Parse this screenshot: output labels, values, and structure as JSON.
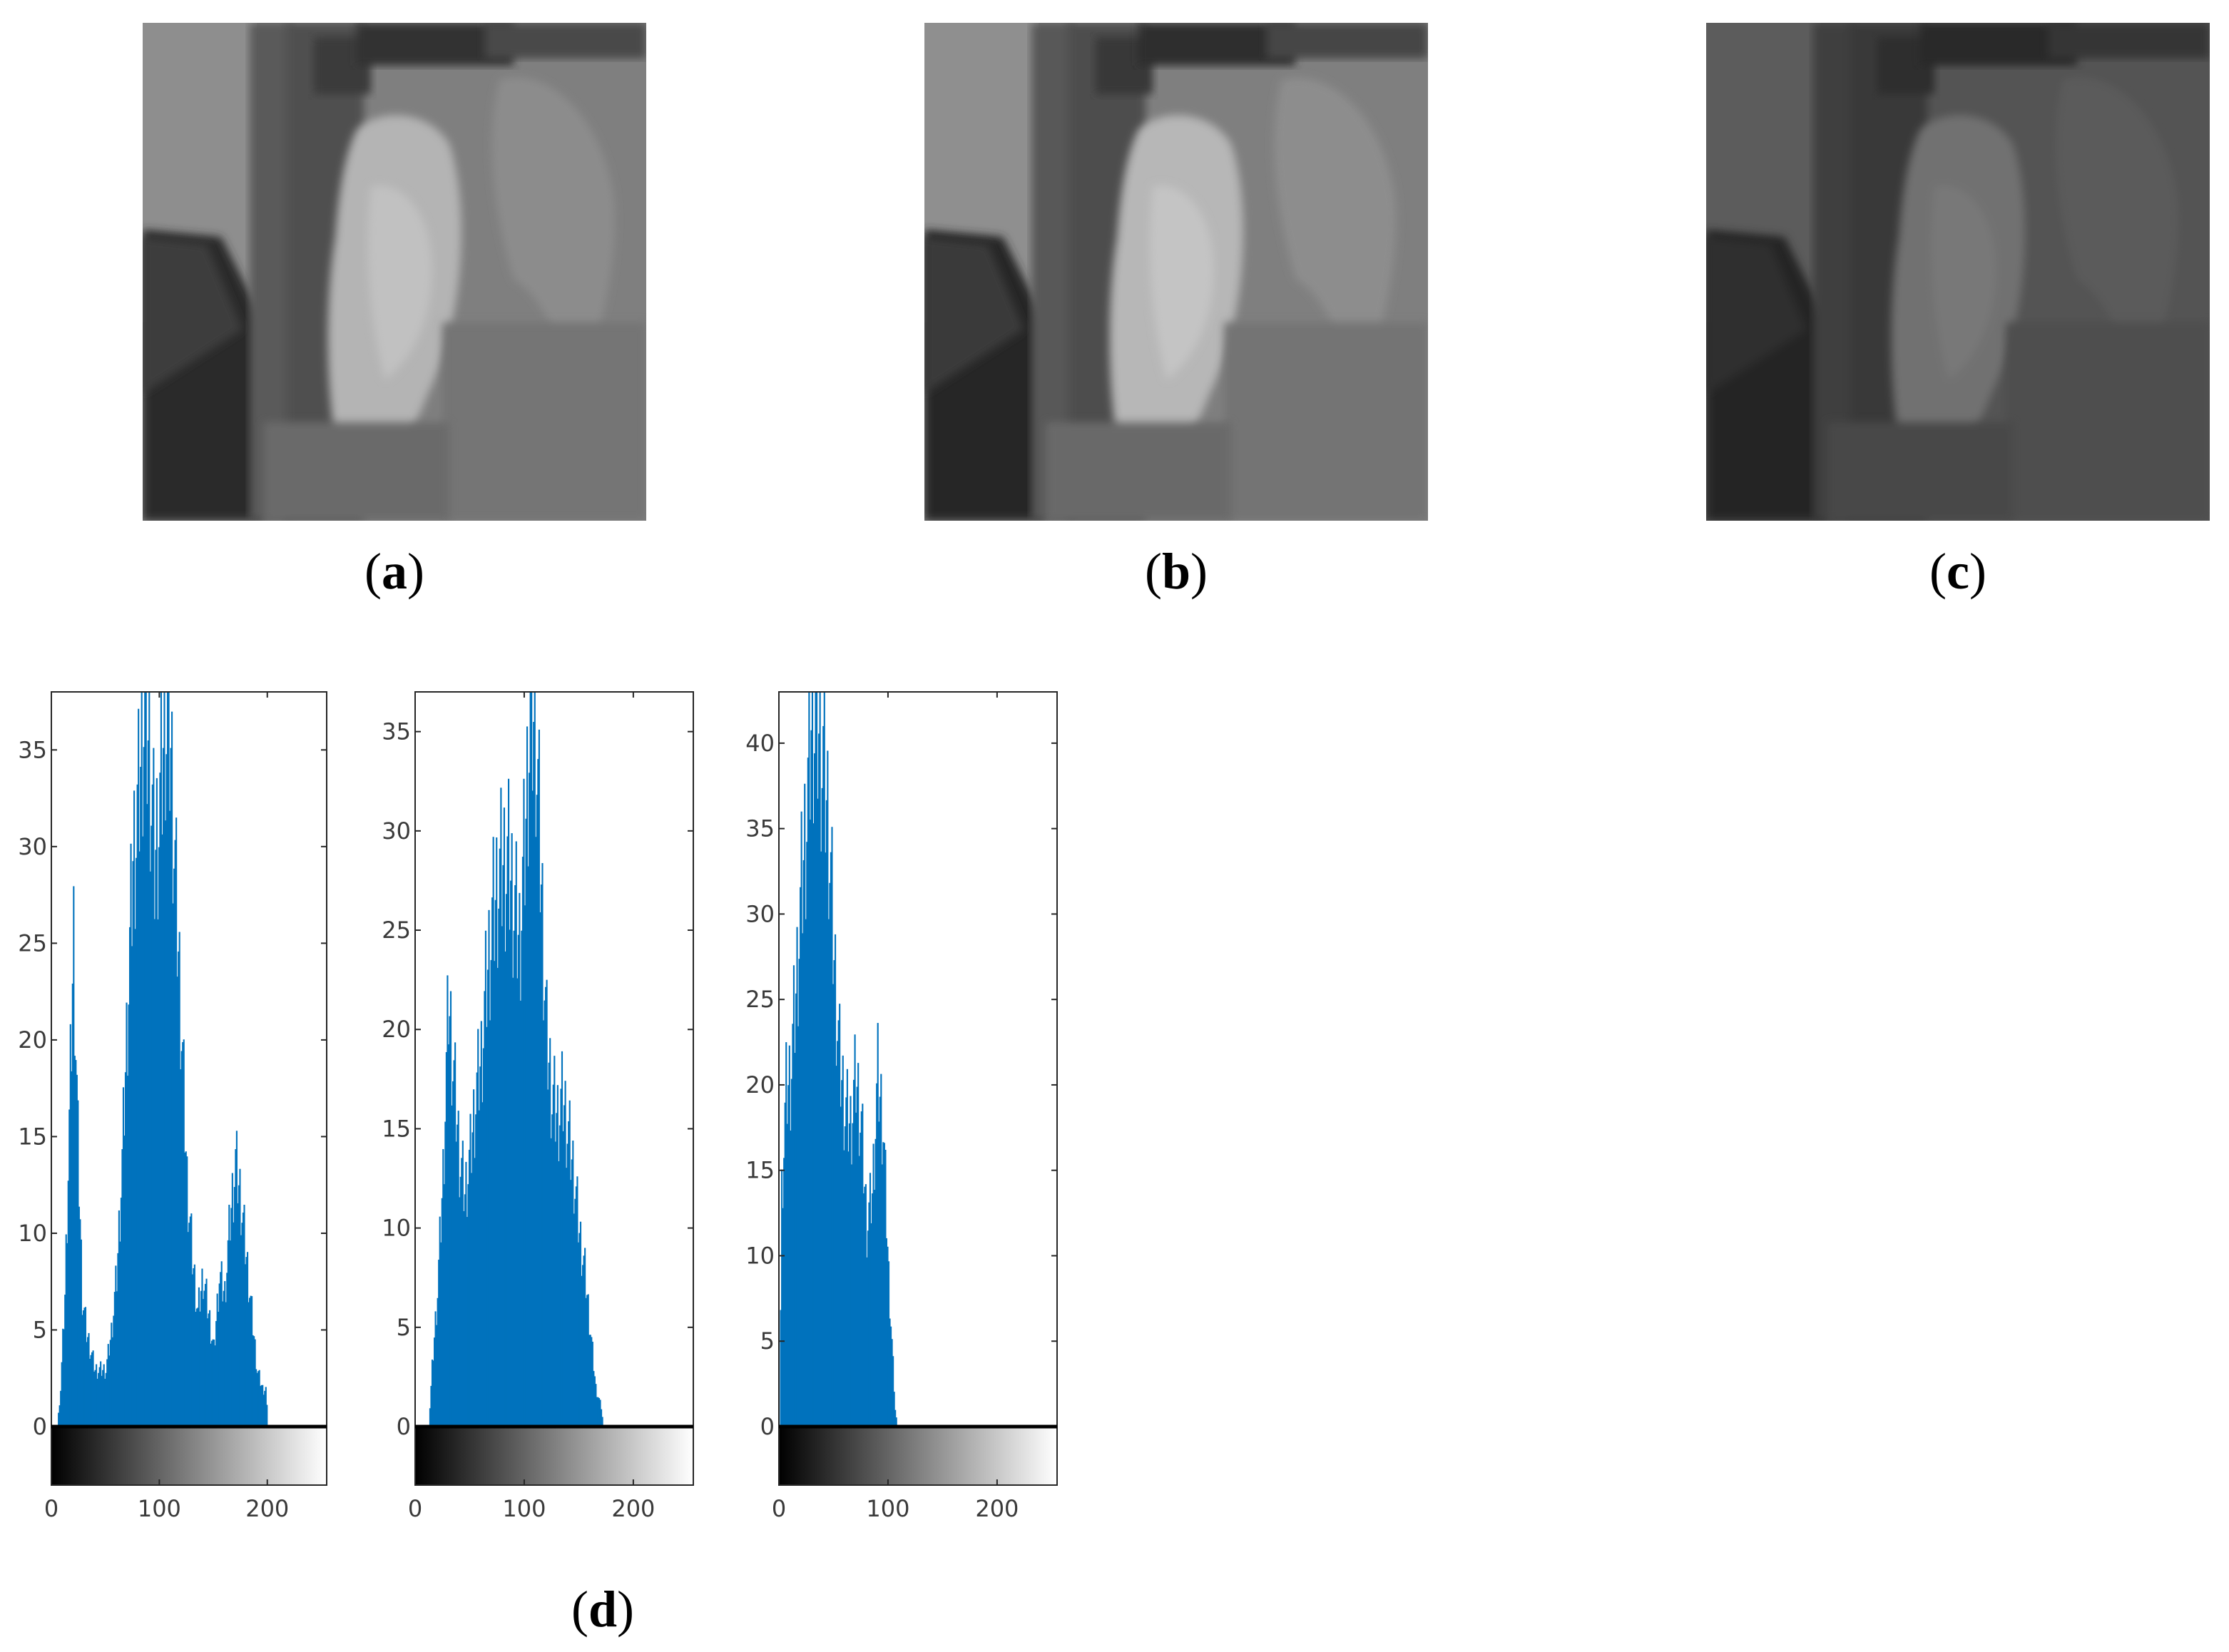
{
  "panels": [
    {
      "letter": "a",
      "brightness": 1.0,
      "contrast": 1.0
    },
    {
      "letter": "b",
      "brightness": 1.0,
      "contrast": 1.05
    },
    {
      "letter": "c",
      "brightness": 0.62,
      "contrast": 0.9
    }
  ],
  "caption_d": "d",
  "chart_data": [
    {
      "type": "bar",
      "xlim": [
        0,
        255
      ],
      "ylim": [
        0,
        38
      ],
      "xticks": [
        0,
        100,
        200
      ],
      "yticks": [
        0,
        5,
        10,
        15,
        20,
        25,
        30,
        35
      ],
      "bar_color": "#0072bd",
      "colorbar": "grayscale",
      "profile": [
        [
          0,
          0
        ],
        [
          5,
          0
        ],
        [
          8,
          2
        ],
        [
          12,
          7
        ],
        [
          16,
          16
        ],
        [
          20,
          26
        ],
        [
          24,
          15
        ],
        [
          28,
          7
        ],
        [
          32,
          5
        ],
        [
          36,
          4
        ],
        [
          40,
          3
        ],
        [
          45,
          3
        ],
        [
          50,
          3
        ],
        [
          55,
          5
        ],
        [
          60,
          8
        ],
        [
          65,
          14
        ],
        [
          70,
          22
        ],
        [
          75,
          30
        ],
        [
          80,
          33
        ],
        [
          85,
          38
        ],
        [
          90,
          36
        ],
        [
          95,
          30
        ],
        [
          100,
          33
        ],
        [
          105,
          38
        ],
        [
          110,
          36
        ],
        [
          115,
          28
        ],
        [
          120,
          21
        ],
        [
          125,
          13
        ],
        [
          130,
          9
        ],
        [
          135,
          6
        ],
        [
          140,
          8
        ],
        [
          145,
          6
        ],
        [
          150,
          4
        ],
        [
          155,
          8
        ],
        [
          160,
          7
        ],
        [
          165,
          11
        ],
        [
          170,
          14
        ],
        [
          175,
          12
        ],
        [
          180,
          9
        ],
        [
          185,
          6
        ],
        [
          190,
          3
        ],
        [
          195,
          2
        ],
        [
          198,
          2
        ],
        [
          200,
          0
        ],
        [
          255,
          0
        ]
      ]
    },
    {
      "type": "bar",
      "xlim": [
        0,
        255
      ],
      "ylim": [
        0,
        37
      ],
      "xticks": [
        0,
        100,
        200
      ],
      "yticks": [
        0,
        5,
        10,
        15,
        20,
        25,
        30,
        35
      ],
      "bar_color": "#0072bd",
      "colorbar": "grayscale",
      "profile": [
        [
          0,
          0
        ],
        [
          12,
          0
        ],
        [
          15,
          3
        ],
        [
          20,
          7
        ],
        [
          25,
          13
        ],
        [
          30,
          22
        ],
        [
          35,
          18
        ],
        [
          40,
          14
        ],
        [
          45,
          12
        ],
        [
          50,
          14
        ],
        [
          55,
          17
        ],
        [
          60,
          19
        ],
        [
          65,
          23
        ],
        [
          70,
          26
        ],
        [
          75,
          28
        ],
        [
          80,
          29
        ],
        [
          85,
          29
        ],
        [
          90,
          27
        ],
        [
          95,
          25
        ],
        [
          100,
          30
        ],
        [
          105,
          37
        ],
        [
          110,
          36
        ],
        [
          115,
          28
        ],
        [
          120,
          20
        ],
        [
          125,
          17
        ],
        [
          130,
          16
        ],
        [
          135,
          17
        ],
        [
          140,
          15
        ],
        [
          145,
          13
        ],
        [
          150,
          10
        ],
        [
          155,
          8
        ],
        [
          160,
          5
        ],
        [
          165,
          2
        ],
        [
          170,
          1
        ],
        [
          172,
          0
        ],
        [
          255,
          0
        ]
      ]
    },
    {
      "type": "bar",
      "xlim": [
        0,
        255
      ],
      "ylim": [
        0,
        43
      ],
      "xticks": [
        0,
        100,
        200
      ],
      "yticks": [
        0,
        5,
        10,
        15,
        20,
        25,
        30,
        35,
        40
      ],
      "bar_color": "#0072bd",
      "colorbar": "grayscale",
      "profile": [
        [
          0,
          0
        ],
        [
          2,
          14
        ],
        [
          6,
          20
        ],
        [
          10,
          21
        ],
        [
          15,
          26
        ],
        [
          20,
          32
        ],
        [
          25,
          37
        ],
        [
          30,
          43
        ],
        [
          35,
          42
        ],
        [
          40,
          40
        ],
        [
          45,
          36
        ],
        [
          50,
          28
        ],
        [
          55,
          22
        ],
        [
          60,
          19
        ],
        [
          65,
          18
        ],
        [
          70,
          21
        ],
        [
          75,
          18
        ],
        [
          80,
          12
        ],
        [
          85,
          14
        ],
        [
          90,
          21
        ],
        [
          95,
          18
        ],
        [
          100,
          9
        ],
        [
          103,
          5
        ],
        [
          106,
          1
        ],
        [
          108,
          0
        ],
        [
          255,
          0
        ]
      ]
    }
  ]
}
